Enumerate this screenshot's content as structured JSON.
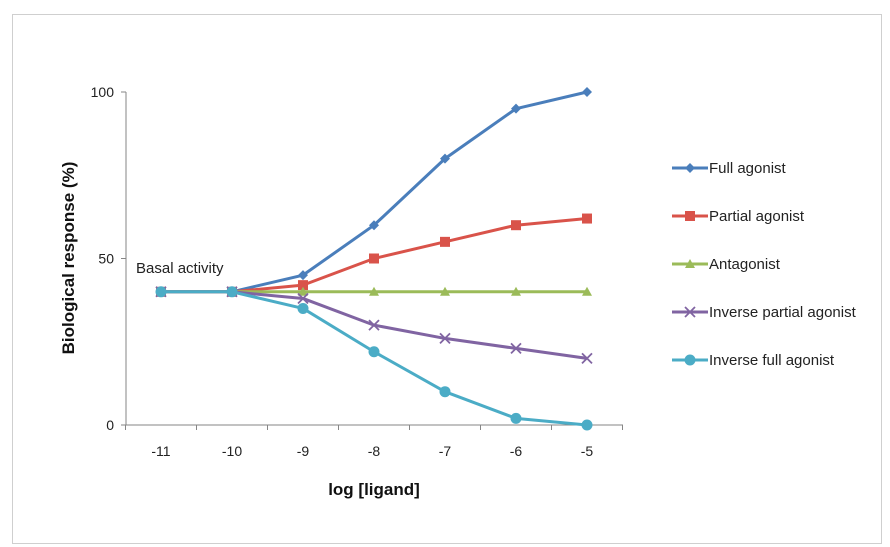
{
  "chart_data": {
    "type": "line",
    "title": "",
    "xlabel": "log [ligand]",
    "ylabel": "Biological response (%)",
    "x": [
      -11,
      -10,
      -9,
      -8,
      -7,
      -6,
      -5
    ],
    "x_tick_labels": [
      "-11",
      "-10",
      "-9",
      "-8",
      "-7",
      "-6",
      "-5"
    ],
    "ylim": [
      0,
      100
    ],
    "y_ticks": [
      0,
      50,
      100
    ],
    "y_tick_labels": [
      "0",
      "50",
      "100"
    ],
    "grid": false,
    "legend_position": "right",
    "annotations": [
      {
        "text": "Basal activity",
        "x": -11,
        "y": 40
      }
    ],
    "series": [
      {
        "name": "Full agonist",
        "values": [
          40,
          40,
          45,
          60,
          80,
          95,
          100
        ],
        "color": "#4a7ebb",
        "marker": "diamond"
      },
      {
        "name": "Partial agonist",
        "values": [
          40,
          40,
          42,
          50,
          55,
          60,
          62
        ],
        "color": "#d9534a",
        "marker": "square"
      },
      {
        "name": "Antagonist",
        "values": [
          40,
          40,
          40,
          40,
          40,
          40,
          40
        ],
        "color": "#9bbb59",
        "marker": "triangle"
      },
      {
        "name": "Inverse partial agonist",
        "values": [
          40,
          40,
          38,
          30,
          26,
          23,
          20
        ],
        "color": "#8064a2",
        "marker": "x"
      },
      {
        "name": "Inverse full agonist",
        "values": [
          40,
          40,
          35,
          22,
          10,
          2,
          0
        ],
        "color": "#4bacc6",
        "marker": "circle"
      }
    ]
  }
}
